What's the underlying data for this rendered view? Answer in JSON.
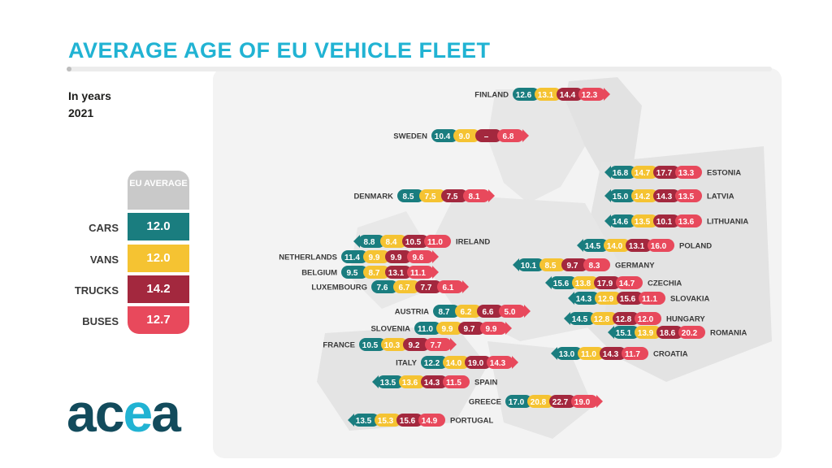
{
  "title": "AVERAGE AGE OF EU VEHICLE FLEET",
  "subtitle_unit": "In years",
  "subtitle_year": "2021",
  "logo": "acea",
  "colors": {
    "cars": "#1a7d7f",
    "vans": "#f5c332",
    "trucks": "#a3283e",
    "buses": "#e8495c",
    "accent": "#21b3d3",
    "map": "#e4e4e4"
  },
  "eu_average": {
    "header": "EU AVERAGE",
    "rows": [
      {
        "label": "CARS",
        "value": "12.0"
      },
      {
        "label": "VANS",
        "value": "12.0"
      },
      {
        "label": "TRUCKS",
        "value": "14.2"
      },
      {
        "label": "BUSES",
        "value": "12.7"
      }
    ]
  },
  "chart_data": {
    "type": "table",
    "title": "AVERAGE AGE OF EU VEHICLE FLEET",
    "subtitle": "In years 2021",
    "columns": [
      "CARS",
      "VANS",
      "TRUCKS",
      "BUSES"
    ],
    "rows": [
      {
        "country": "FINLAND",
        "values": [
          "12.6",
          "13.1",
          "14.4",
          "12.3"
        ]
      },
      {
        "country": "SWEDEN",
        "values": [
          "10.4",
          "9.0",
          "–",
          "6.8"
        ]
      },
      {
        "country": "ESTONIA",
        "values": [
          "16.8",
          "14.7",
          "17.7",
          "13.3"
        ]
      },
      {
        "country": "DENMARK",
        "values": [
          "8.5",
          "7.5",
          "7.5",
          "8.1"
        ]
      },
      {
        "country": "LATVIA",
        "values": [
          "15.0",
          "14.2",
          "14.3",
          "13.5"
        ]
      },
      {
        "country": "LITHUANIA",
        "values": [
          "14.6",
          "13.5",
          "10.1",
          "13.6"
        ]
      },
      {
        "country": "IRELAND",
        "values": [
          "8.8",
          "8.4",
          "10.5",
          "11.0"
        ]
      },
      {
        "country": "POLAND",
        "values": [
          "14.5",
          "14.0",
          "13.1",
          "16.0"
        ]
      },
      {
        "country": "NETHERLANDS",
        "values": [
          "11.4",
          "9.9",
          "9.9",
          "9.6"
        ]
      },
      {
        "country": "GERMANY",
        "values": [
          "10.1",
          "8.5",
          "9.7",
          "8.3"
        ]
      },
      {
        "country": "BELGIUM",
        "values": [
          "9.5",
          "8.7",
          "13.1",
          "11.1"
        ]
      },
      {
        "country": "CZECHIA",
        "values": [
          "15.6",
          "13.8",
          "17.9",
          "14.7"
        ]
      },
      {
        "country": "LUXEMBOURG",
        "values": [
          "7.6",
          "6.7",
          "7.7",
          "6.1"
        ]
      },
      {
        "country": "SLOVAKIA",
        "values": [
          "14.3",
          "12.9",
          "15.6",
          "11.1"
        ]
      },
      {
        "country": "AUSTRIA",
        "values": [
          "8.7",
          "6.2",
          "6.6",
          "5.0"
        ]
      },
      {
        "country": "HUNGARY",
        "values": [
          "14.5",
          "12.8",
          "12.8",
          "12.0"
        ]
      },
      {
        "country": "SLOVENIA",
        "values": [
          "11.0",
          "9.9",
          "9.7",
          "9.9"
        ]
      },
      {
        "country": "ROMANIA",
        "values": [
          "15.1",
          "13.9",
          "18.6",
          "20.2"
        ]
      },
      {
        "country": "FRANCE",
        "values": [
          "10.5",
          "10.3",
          "9.2",
          "7.7"
        ]
      },
      {
        "country": "CROATIA",
        "values": [
          "13.0",
          "11.0",
          "14.3",
          "11.7"
        ]
      },
      {
        "country": "ITALY",
        "values": [
          "12.2",
          "14.0",
          "19.0",
          "14.3"
        ]
      },
      {
        "country": "SPAIN",
        "values": [
          "13.5",
          "13.6",
          "14.3",
          "11.5"
        ]
      },
      {
        "country": "GREECE",
        "values": [
          "17.0",
          "20.8",
          "22.7",
          "19.0"
        ]
      },
      {
        "country": "PORTUGAL",
        "values": [
          "13.5",
          "15.3",
          "15.6",
          "14.9"
        ]
      }
    ]
  }
}
